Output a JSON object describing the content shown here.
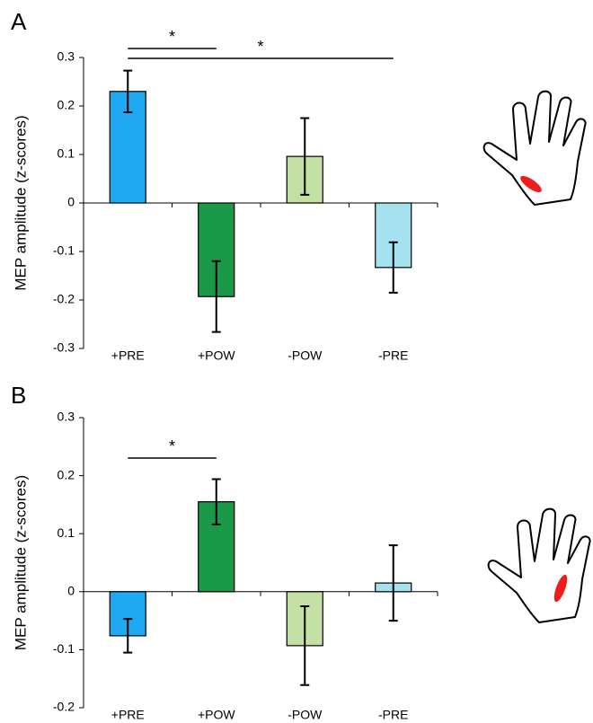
{
  "chart_data": [
    {
      "type": "bar",
      "panel_label": "A",
      "y_label": "MEP amplitude (z-scores)",
      "categories": [
        "+PRE",
        "+POW",
        "-POW",
        "-PRE"
      ],
      "values": [
        0.23,
        -0.193,
        0.096,
        -0.133
      ],
      "errors": [
        0.043,
        0.073,
        0.079,
        0.052
      ],
      "colors": [
        "#1ea9f0",
        "#1a9a48",
        "#c4e0a4",
        "#a5e1ee"
      ],
      "ylim": [
        -0.3,
        0.3
      ],
      "yticks": [
        0.3,
        0.2,
        0.1,
        0,
        -0.1,
        -0.2,
        -0.3
      ],
      "annotations": [
        {
          "text": "*"
        },
        {
          "text": "*"
        }
      ]
    },
    {
      "type": "bar",
      "panel_label": "B",
      "y_label": "MEP amplitude (z-scores)",
      "categories": [
        "+PRE",
        "+POW",
        "-POW",
        "-PRE"
      ],
      "values": [
        -0.076,
        0.155,
        -0.093,
        0.015
      ],
      "errors": [
        0.029,
        0.039,
        0.068,
        0.065
      ],
      "colors": [
        "#1ea9f0",
        "#1a9a48",
        "#c4e0a4",
        "#a5e1ee"
      ],
      "ylim": [
        -0.2,
        0.3
      ],
      "yticks": [
        0.3,
        0.2,
        0.1,
        0,
        -0.1,
        -0.2
      ],
      "annotations": [
        {
          "text": "*"
        }
      ]
    }
  ]
}
